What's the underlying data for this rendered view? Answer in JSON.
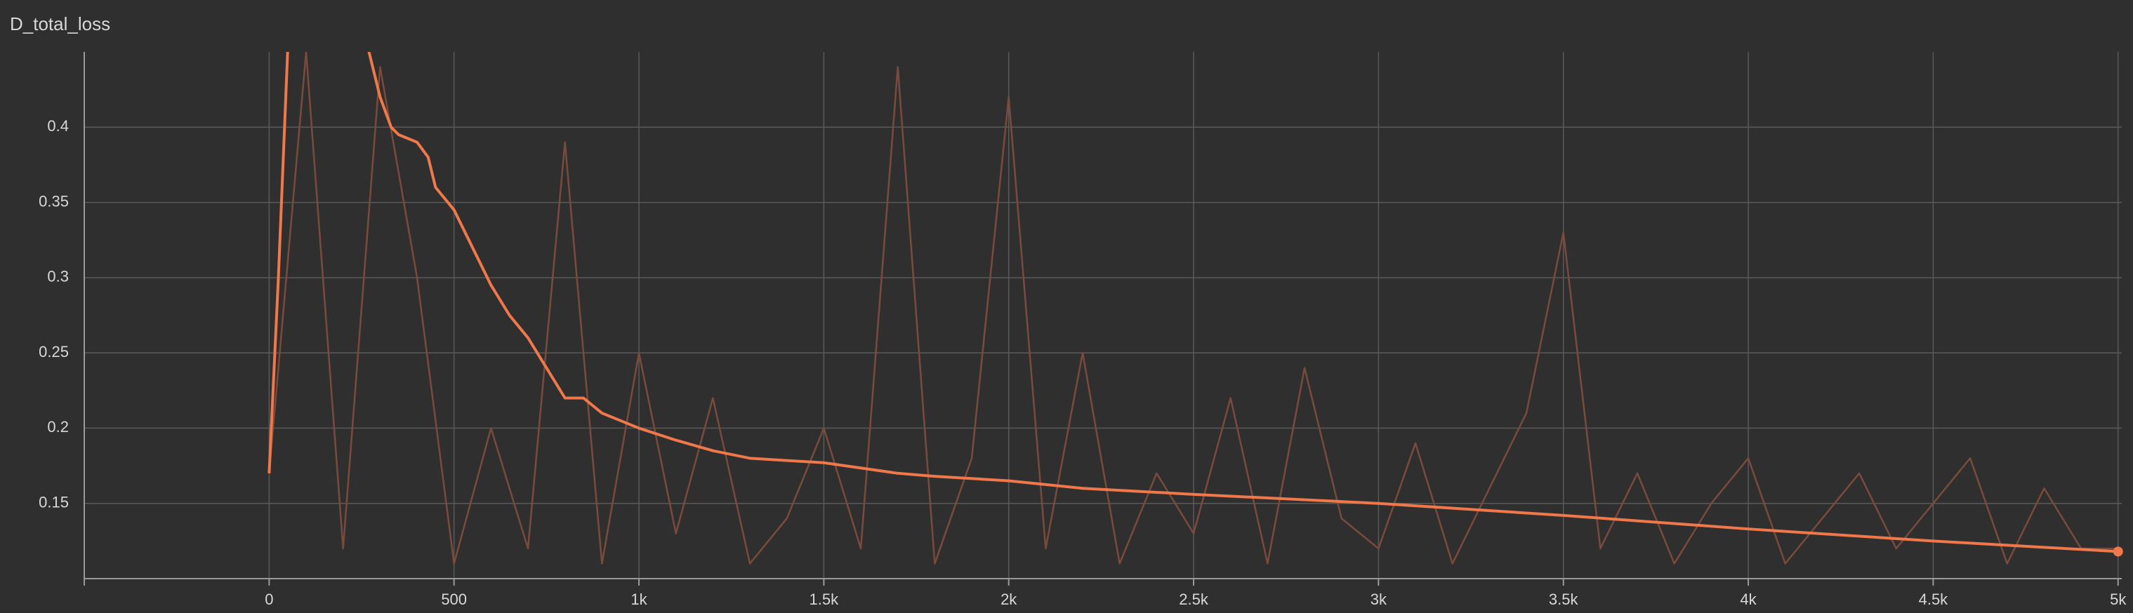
{
  "chart_data": {
    "type": "line",
    "title": "D_total_loss",
    "xlim": [
      -500,
      5010
    ],
    "ylim": [
      0.1,
      0.45
    ],
    "xticks": [
      0,
      500,
      {
        "value": 1000,
        "label": "1k"
      },
      {
        "value": 1500,
        "label": "1.5k"
      },
      {
        "value": 2000,
        "label": "2k"
      },
      {
        "value": 2500,
        "label": "2.5k"
      },
      {
        "value": 3000,
        "label": "3k"
      },
      {
        "value": 3500,
        "label": "3.5k"
      },
      {
        "value": 4000,
        "label": "4k"
      },
      {
        "value": 4500,
        "label": "4.5k"
      },
      {
        "value": 5000,
        "label": "5k"
      }
    ],
    "yticks": [
      0.15,
      0.2,
      0.25,
      0.3,
      0.35,
      0.4
    ],
    "grid": true,
    "series": [
      {
        "color": "#7a4b3c",
        "x": [
          0,
          100,
          200,
          300,
          400,
          500,
          600,
          700,
          800,
          900,
          1000,
          1100,
          1200,
          1300,
          1400,
          1500,
          1600,
          1700,
          1800,
          1900,
          2000,
          2100,
          2200,
          2300,
          2400,
          2500,
          2600,
          2700,
          2800,
          2900,
          3000,
          3100,
          3200,
          3300,
          3400,
          3500,
          3600,
          3700,
          3800,
          3900,
          4000,
          4100,
          4200,
          4300,
          4400,
          4500,
          4600,
          4700,
          4800,
          4900,
          5000
        ],
        "values": [
          0.17,
          0.45,
          0.12,
          0.44,
          0.3,
          0.11,
          0.2,
          0.12,
          0.39,
          0.11,
          0.25,
          0.13,
          0.22,
          0.11,
          0.14,
          0.2,
          0.12,
          0.44,
          0.11,
          0.18,
          0.42,
          0.12,
          0.25,
          0.11,
          0.17,
          0.13,
          0.22,
          0.11,
          0.24,
          0.14,
          0.12,
          0.19,
          0.11,
          0.16,
          0.21,
          0.33,
          0.12,
          0.17,
          0.11,
          0.15,
          0.18,
          0.11,
          0.14,
          0.17,
          0.12,
          0.15,
          0.18,
          0.11,
          0.16,
          0.12,
          0.12
        ]
      },
      {
        "color": "#f0784a",
        "x": [
          0,
          25,
          50,
          100,
          200,
          270,
          300,
          330,
          350,
          400,
          430,
          450,
          500,
          550,
          600,
          650,
          700,
          750,
          800,
          850,
          900,
          1000,
          1100,
          1200,
          1300,
          1500,
          1700,
          1800,
          2000,
          2200,
          2500,
          3000,
          3500,
          4000,
          4500,
          5000
        ],
        "values": [
          0.17,
          0.3,
          0.45,
          0.55,
          0.5,
          0.45,
          0.42,
          0.4,
          0.395,
          0.39,
          0.38,
          0.36,
          0.345,
          0.32,
          0.295,
          0.275,
          0.26,
          0.24,
          0.22,
          0.22,
          0.21,
          0.2,
          0.192,
          0.185,
          0.18,
          0.177,
          0.17,
          0.168,
          0.165,
          0.16,
          0.156,
          0.15,
          0.142,
          0.133,
          0.125,
          0.118
        ]
      }
    ]
  }
}
